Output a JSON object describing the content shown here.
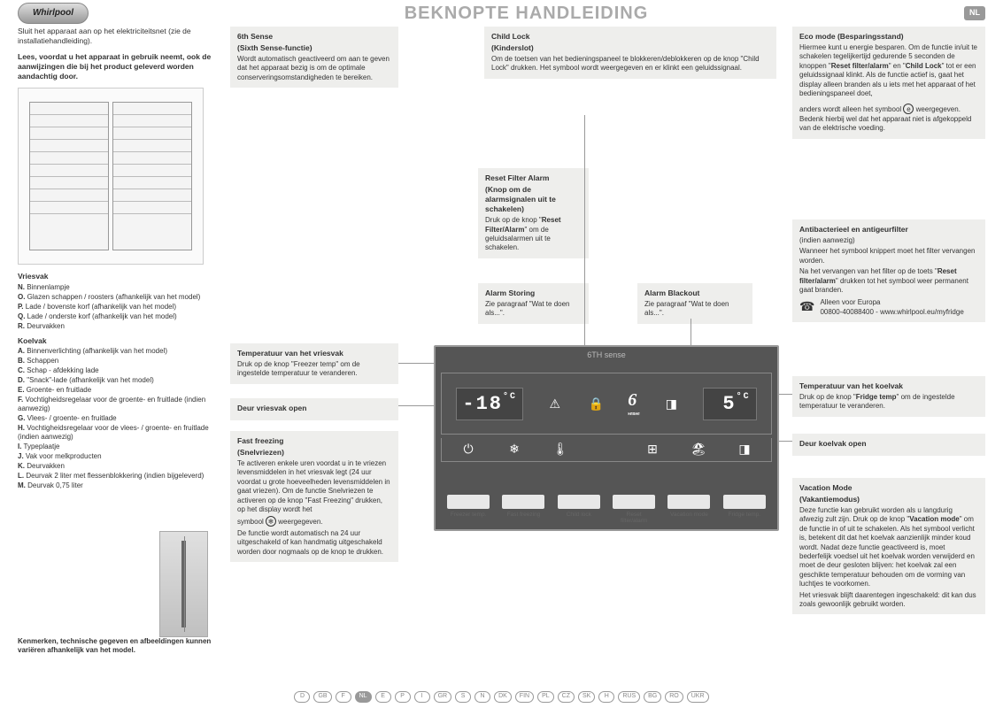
{
  "header": {
    "logo_text": "Whirlpool",
    "title": "BEKNOPTE HANDLEIDING",
    "lang": "NL"
  },
  "left": {
    "intro1": "Sluit het apparaat aan op het elektriciteitsnet (zie de installatiehandleiding).",
    "intro2": "Lees, voordat u het apparaat in gebruik neemt, ook de aanwijzingen die bij het product geleverd worden aandachtig door.",
    "vriesvak_title": "Vriesvak",
    "vriesvak_items": [
      "N. Binnenlampje",
      "O. Glazen schappen / roosters (afhankelijk van het model)",
      "P. Lade / bovenste korf (afhankelijk van het model)",
      "Q. Lade / onderste korf (afhankelijk van het model)",
      "R. Deurvakken"
    ],
    "koelvak_title": "Koelvak",
    "koelvak_items": [
      "A. Binnenverlichting (afhankelijk van het model)",
      "B. Schappen",
      "C. Schap - afdekking lade",
      "D. \"Snack\"-lade (afhankelijk van het model)",
      "E. Groente- en fruitlade",
      "F. Vochtigheidsregelaar voor de groente- en fruitlade (indien aanwezig)",
      "G. Vlees- / groente- en fruitlade",
      "H. Vochtigheidsregelaar voor de vlees- / groente- en fruitlade (indien aanwezig)",
      "I. Typeplaatje",
      "J. Vak voor melkproducten",
      "K. Deurvakken",
      "L. Deurvak 2 liter met flessenblokkering (indien bijgeleverd)",
      "M. Deurvak 0,75 liter"
    ],
    "bottom_note": "Kenmerken, technische gegeven en afbeeldingen kunnen variëren afhankelijk van het model."
  },
  "boxes": {
    "sixth": {
      "t1": "6th Sense",
      "t2": "(Sixth Sense-functie)",
      "body": "Wordt automatisch geactiveerd om aan te geven dat het apparaat bezig is om de optimale conserveringsomstandigheden te bereiken."
    },
    "freezer_temp": {
      "t1": "Temperatuur van het vriesvak",
      "body": "Druk op de knop \"Freezer temp\" om de ingestelde temperatuur te veranderen."
    },
    "freezer_door": {
      "t1": "Deur vriesvak open"
    },
    "fast": {
      "t1": "Fast freezing",
      "t2": "(Snelvriezen)",
      "body1": "Te activeren enkele uren voordat u in te vriezen levensmiddelen in het vriesvak legt (24 uur voordat u grote hoeveelheden levensmiddelen in gaat vriezen). Om de functie Snelvriezen te activeren op de knop \"Fast Freezing\" drukken, op het display wordt het",
      "body2": "symbool",
      "body3": "weergegeven.",
      "body4": "De functie wordt automatisch na 24 uur uitgeschakeld of kan handmatig uitgeschakeld worden door nogmaals op de knop te drukken."
    },
    "childlock": {
      "t1": "Child Lock",
      "t2": "(Kinderslot)",
      "body": "Om de toetsen van het bedieningspaneel te blokkeren/deblokkeren op de knop \"Child Lock\" drukken. Het symbool wordt weergegeven en er klinkt een geluidssignaal."
    },
    "reset": {
      "t1": "Reset Filter Alarm",
      "t2": "(Knop om de alarmsignalen uit te schakelen)",
      "body": "Druk op de knop \"Reset Filter/Alarm\" om de geluidsalarmen uit te schakelen."
    },
    "storing": {
      "t1": "Alarm Storing",
      "body": "Zie paragraaf \"Wat te doen als...\"."
    },
    "blackout": {
      "t1": "Alarm Blackout",
      "body": "Zie paragraaf \"Wat te doen als...\"."
    },
    "eco": {
      "t1": "Eco mode (Besparingsstand)",
      "body1": "Hiermee kunt u energie besparen. Om de functie in/uit te schakelen tegelijkertijd gedurende 5 seconden de knoppen \"Reset filter/alarm\" en \"Child Lock\" tot er een geluidssignaal klinkt. Als de functie actief is, gaat het display alleen branden als u iets met het apparaat of het bedieningspaneel doet,",
      "body2a": "anders wordt alleen het symbool",
      "body2b": "weergegeven. Bedenk hierbij wel dat het apparaat niet is afgekoppeld van de elektrische voeding."
    },
    "filter": {
      "t1": "Antibacterieel en antigeurfilter",
      "t2": "(indien aanwezig)",
      "body1": "Wanneer het symbool knippert moet het filter vervangen worden.",
      "body2": "Na het vervangen van het filter op de toets \"Reset filter/alarm\" drukken tot het symbool weer permanent gaat branden.",
      "phone": "Alleen voor Europa\n00800-40088400 - www.whirlpool.eu/myfridge"
    },
    "fridge_temp": {
      "t1": "Temperatuur van het koelvak",
      "body": "Druk op de knop \"Fridge temp\" om de ingestelde temperatuur te veranderen."
    },
    "fridge_door": {
      "t1": "Deur koelvak open"
    },
    "vacation": {
      "t1": "Vacation Mode",
      "t2": "(Vakantiemodus)",
      "body1": "Deze functie kan gebruikt worden als u langdurig afwezig zult zijn. Druk op de knop \"Vacation mode\" om de functie in of uit te schakelen. Als het symbool verlicht is, betekent dit dat het koelvak aanzienlijk minder koud wordt. Nadat deze functie geactiveerd is, moet bederfelijk voedsel uit het koelvak worden verwijderd en moet de deur gesloten blijven: het koelvak zal een geschikte temperatuur behouden om de vorming van luchtjes te voorkomen.",
      "body2": "Het vriesvak blijft daarentegen ingeschakeld: dit kan dus zoals gewoonlijk gebruikt worden."
    }
  },
  "panel": {
    "header": "6TH sense",
    "freezer_temp": "-18",
    "fridge_temp": "5",
    "deg": "°C",
    "six_label": "sense",
    "buttons": [
      "Freezer temp.",
      "Fast freezing",
      "Child lock",
      "Reset filter/alarm",
      "Vacation mode",
      "Fridge temp."
    ]
  },
  "footer": [
    "D",
    "GB",
    "F",
    "NL",
    "E",
    "P",
    "I",
    "GR",
    "S",
    "N",
    "DK",
    "FIN",
    "PL",
    "CZ",
    "SK",
    "H",
    "RUS",
    "BG",
    "RO",
    "UKR"
  ],
  "footer_active": "NL"
}
